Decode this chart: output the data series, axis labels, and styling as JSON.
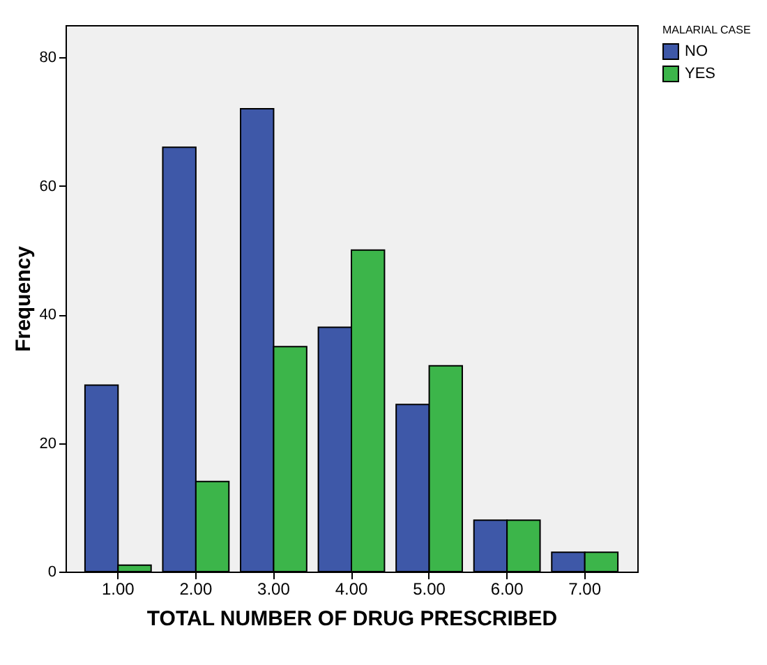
{
  "chart_data": {
    "type": "bar",
    "xlabel": "TOTAL NUMBER OF DRUG PRESCRIBED",
    "ylabel": "Frequency",
    "legend_title": "MALARIAL CASE",
    "legend": "top right",
    "grid": false,
    "categories": [
      "1.00",
      "2.00",
      "3.00",
      "4.00",
      "5.00",
      "6.00",
      "7.00"
    ],
    "ylim": [
      0,
      85
    ],
    "yticks": [
      0,
      20,
      40,
      60,
      80
    ],
    "series": [
      {
        "name": "NO",
        "color": "#3e58a8",
        "values": [
          29,
          66,
          72,
          38,
          26,
          8,
          3
        ]
      },
      {
        "name": "YES",
        "color": "#3cb54a",
        "values": [
          1,
          14,
          35,
          50,
          32,
          8,
          3
        ]
      }
    ]
  }
}
